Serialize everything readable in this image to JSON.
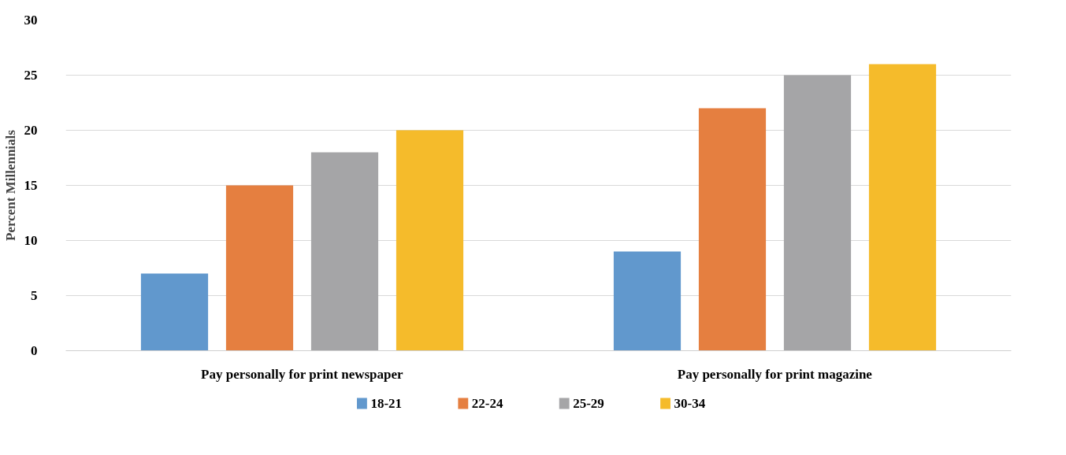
{
  "chart_data": {
    "type": "bar",
    "ylabel": "Percent Millennials",
    "categories": [
      "Pay personally for print newspaper",
      "Pay personally for print magazine"
    ],
    "series": [
      {
        "name": "18-21",
        "color": "#6198cd",
        "values": [
          7,
          9
        ]
      },
      {
        "name": "22-24",
        "color": "#e57f40",
        "values": [
          15,
          22
        ]
      },
      {
        "name": "25-29",
        "color": "#a5a5a7",
        "values": [
          18,
          25
        ]
      },
      {
        "name": "30-34",
        "color": "#f5bb2b",
        "values": [
          20,
          26
        ]
      }
    ],
    "ylim": [
      0,
      30
    ],
    "yticks": [
      0,
      5,
      10,
      15,
      20,
      25,
      30
    ],
    "grid": "y",
    "legend": "bottom"
  }
}
